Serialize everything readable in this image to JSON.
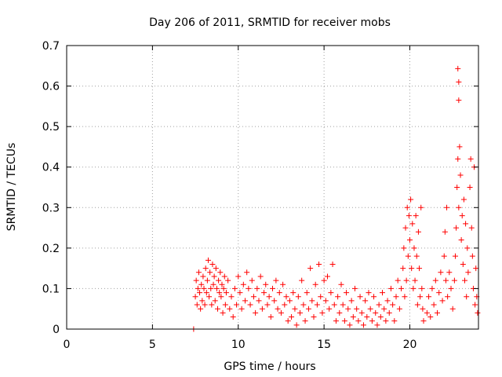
{
  "chart_data": {
    "type": "scatter",
    "title": "Day 206 of 2011, SRMTID for receiver mobs",
    "xlabel": "GPS time / hours",
    "ylabel": "SRMTID / TECUs",
    "xlim": [
      0,
      24
    ],
    "ylim": [
      0,
      0.7
    ],
    "grid": true,
    "marker": "+",
    "color": "#ff0000",
    "xticks": [
      0,
      5,
      10,
      15,
      20
    ],
    "xtick_labels": [
      "0",
      "5",
      "10",
      "15",
      "20"
    ],
    "yticks": [
      0,
      0.1,
      0.2,
      0.3,
      0.4,
      0.5,
      0.6,
      0.7
    ],
    "ytick_labels": [
      "0",
      "0.1",
      "0.2",
      "0.3",
      "0.4",
      "0.5",
      "0.6",
      "0.7"
    ],
    "series": [
      {
        "name": "mobs",
        "points": [
          [
            7.4,
            0.0
          ],
          [
            7.5,
            0.08
          ],
          [
            7.55,
            0.12
          ],
          [
            7.6,
            0.06
          ],
          [
            7.65,
            0.1
          ],
          [
            7.7,
            0.14
          ],
          [
            7.75,
            0.09
          ],
          [
            7.8,
            0.05
          ],
          [
            7.85,
            0.11
          ],
          [
            7.9,
            0.07
          ],
          [
            7.95,
            0.13
          ],
          [
            8.0,
            0.1
          ],
          [
            8.05,
            0.06
          ],
          [
            8.1,
            0.15
          ],
          [
            8.15,
            0.09
          ],
          [
            8.2,
            0.12
          ],
          [
            8.25,
            0.17
          ],
          [
            8.3,
            0.08
          ],
          [
            8.35,
            0.14
          ],
          [
            8.4,
            0.1
          ],
          [
            8.45,
            0.06
          ],
          [
            8.5,
            0.16
          ],
          [
            8.55,
            0.11
          ],
          [
            8.6,
            0.13
          ],
          [
            8.65,
            0.07
          ],
          [
            8.7,
            0.15
          ],
          [
            8.75,
            0.1
          ],
          [
            8.8,
            0.05
          ],
          [
            8.85,
            0.12
          ],
          [
            8.9,
            0.09
          ],
          [
            8.95,
            0.14
          ],
          [
            9.0,
            0.08
          ],
          [
            9.05,
            0.11
          ],
          [
            9.1,
            0.04
          ],
          [
            9.15,
            0.1
          ],
          [
            9.2,
            0.13
          ],
          [
            9.25,
            0.06
          ],
          [
            9.3,
            0.09
          ],
          [
            9.4,
            0.12
          ],
          [
            9.5,
            0.05
          ],
          [
            9.6,
            0.08
          ],
          [
            9.7,
            0.03
          ],
          [
            9.8,
            0.1
          ],
          [
            9.9,
            0.06
          ],
          [
            10.0,
            0.13
          ],
          [
            10.1,
            0.09
          ],
          [
            10.2,
            0.05
          ],
          [
            10.3,
            0.11
          ],
          [
            10.4,
            0.07
          ],
          [
            10.5,
            0.14
          ],
          [
            10.6,
            0.1
          ],
          [
            10.7,
            0.06
          ],
          [
            10.8,
            0.12
          ],
          [
            10.9,
            0.08
          ],
          [
            11.0,
            0.04
          ],
          [
            11.1,
            0.1
          ],
          [
            11.2,
            0.07
          ],
          [
            11.3,
            0.13
          ],
          [
            11.4,
            0.05
          ],
          [
            11.5,
            0.09
          ],
          [
            11.6,
            0.11
          ],
          [
            11.7,
            0.06
          ],
          [
            11.8,
            0.08
          ],
          [
            11.9,
            0.03
          ],
          [
            12.0,
            0.1
          ],
          [
            12.1,
            0.07
          ],
          [
            12.2,
            0.12
          ],
          [
            12.3,
            0.05
          ],
          [
            12.4,
            0.09
          ],
          [
            12.5,
            0.04
          ],
          [
            12.6,
            0.11
          ],
          [
            12.7,
            0.06
          ],
          [
            12.8,
            0.08
          ],
          [
            12.9,
            0.02
          ],
          [
            13.0,
            0.07
          ],
          [
            13.1,
            0.03
          ],
          [
            13.2,
            0.09
          ],
          [
            13.3,
            0.05
          ],
          [
            13.4,
            0.01
          ],
          [
            13.5,
            0.08
          ],
          [
            13.6,
            0.04
          ],
          [
            13.7,
            0.12
          ],
          [
            13.8,
            0.06
          ],
          [
            13.9,
            0.02
          ],
          [
            14.0,
            0.09
          ],
          [
            14.1,
            0.05
          ],
          [
            14.2,
            0.15
          ],
          [
            14.3,
            0.07
          ],
          [
            14.4,
            0.03
          ],
          [
            14.5,
            0.11
          ],
          [
            14.6,
            0.06
          ],
          [
            14.7,
            0.16
          ],
          [
            14.8,
            0.08
          ],
          [
            14.9,
            0.04
          ],
          [
            15.0,
            0.12
          ],
          [
            15.1,
            0.07
          ],
          [
            15.2,
            0.13
          ],
          [
            15.3,
            0.05
          ],
          [
            15.4,
            0.09
          ],
          [
            15.5,
            0.16
          ],
          [
            15.6,
            0.06
          ],
          [
            15.7,
            0.02
          ],
          [
            15.8,
            0.08
          ],
          [
            15.9,
            0.04
          ],
          [
            16.0,
            0.11
          ],
          [
            16.1,
            0.06
          ],
          [
            16.2,
            0.02
          ],
          [
            16.3,
            0.09
          ],
          [
            16.4,
            0.05
          ],
          [
            16.5,
            0.01
          ],
          [
            16.6,
            0.07
          ],
          [
            16.7,
            0.03
          ],
          [
            16.8,
            0.1
          ],
          [
            16.9,
            0.05
          ],
          [
            17.0,
            0.02
          ],
          [
            17.1,
            0.08
          ],
          [
            17.2,
            0.04
          ],
          [
            17.3,
            0.01
          ],
          [
            17.4,
            0.07
          ],
          [
            17.5,
            0.03
          ],
          [
            17.6,
            0.09
          ],
          [
            17.7,
            0.05
          ],
          [
            17.8,
            0.02
          ],
          [
            17.9,
            0.08
          ],
          [
            18.0,
            0.04
          ],
          [
            18.1,
            0.01
          ],
          [
            18.2,
            0.06
          ],
          [
            18.3,
            0.03
          ],
          [
            18.4,
            0.09
          ],
          [
            18.5,
            0.05
          ],
          [
            18.6,
            0.02
          ],
          [
            18.7,
            0.07
          ],
          [
            18.8,
            0.04
          ],
          [
            18.9,
            0.1
          ],
          [
            19.0,
            0.06
          ],
          [
            19.1,
            0.02
          ],
          [
            19.2,
            0.08
          ],
          [
            19.3,
            0.12
          ],
          [
            19.4,
            0.05
          ],
          [
            19.5,
            0.1
          ],
          [
            19.6,
            0.15
          ],
          [
            19.65,
            0.2
          ],
          [
            19.7,
            0.08
          ],
          [
            19.75,
            0.25
          ],
          [
            19.8,
            0.12
          ],
          [
            19.85,
            0.3
          ],
          [
            19.9,
            0.18
          ],
          [
            19.95,
            0.28
          ],
          [
            20.0,
            0.22
          ],
          [
            20.05,
            0.32
          ],
          [
            20.1,
            0.15
          ],
          [
            20.15,
            0.26
          ],
          [
            20.2,
            0.1
          ],
          [
            20.25,
            0.2
          ],
          [
            20.3,
            0.12
          ],
          [
            20.35,
            0.28
          ],
          [
            20.4,
            0.18
          ],
          [
            20.45,
            0.06
          ],
          [
            20.5,
            0.24
          ],
          [
            20.55,
            0.15
          ],
          [
            20.6,
            0.08
          ],
          [
            20.65,
            0.3
          ],
          [
            20.7,
            0.1
          ],
          [
            20.75,
            0.05
          ],
          [
            20.8,
            0.02
          ],
          [
            21.0,
            0.04
          ],
          [
            21.1,
            0.08
          ],
          [
            21.2,
            0.03
          ],
          [
            21.3,
            0.1
          ],
          [
            21.4,
            0.06
          ],
          [
            21.5,
            0.12
          ],
          [
            21.6,
            0.04
          ],
          [
            21.7,
            0.09
          ],
          [
            21.8,
            0.14
          ],
          [
            21.9,
            0.07
          ],
          [
            22.0,
            0.18
          ],
          [
            22.05,
            0.24
          ],
          [
            22.1,
            0.12
          ],
          [
            22.15,
            0.3
          ],
          [
            22.2,
            0.08
          ],
          [
            22.3,
            0.14
          ],
          [
            22.4,
            0.1
          ],
          [
            22.5,
            0.05
          ],
          [
            22.6,
            0.12
          ],
          [
            22.65,
            0.18
          ],
          [
            22.7,
            0.25
          ],
          [
            22.75,
            0.35
          ],
          [
            22.8,
            0.42
          ],
          [
            22.85,
            0.3
          ],
          [
            22.9,
            0.45
          ],
          [
            22.95,
            0.38
          ],
          [
            23.0,
            0.22
          ],
          [
            23.05,
            0.28
          ],
          [
            23.1,
            0.16
          ],
          [
            23.15,
            0.32
          ],
          [
            23.2,
            0.12
          ],
          [
            23.25,
            0.26
          ],
          [
            23.3,
            0.08
          ],
          [
            23.35,
            0.2
          ],
          [
            23.4,
            0.14
          ],
          [
            23.5,
            0.35
          ],
          [
            23.55,
            0.42
          ],
          [
            23.6,
            0.25
          ],
          [
            23.65,
            0.18
          ],
          [
            23.7,
            0.1
          ],
          [
            23.75,
            0.4
          ],
          [
            23.8,
            0.06
          ],
          [
            23.85,
            0.15
          ],
          [
            23.9,
            0.08
          ],
          [
            23.95,
            0.04
          ],
          [
            22.8,
            0.643
          ],
          [
            22.85,
            0.61
          ],
          [
            22.85,
            0.565
          ]
        ]
      }
    ]
  }
}
